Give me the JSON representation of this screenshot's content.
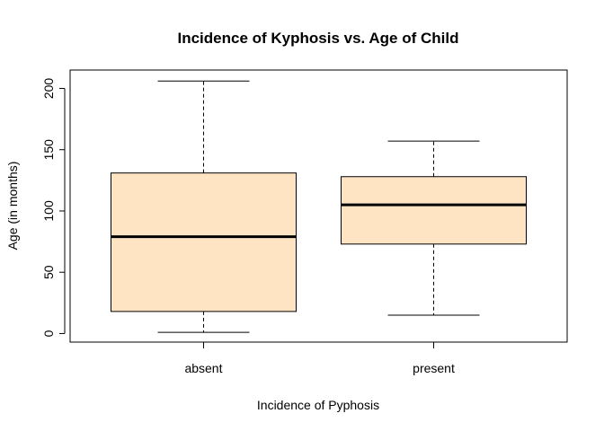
{
  "chart_data": {
    "type": "boxplot",
    "title": "Incidence of Kyphosis vs. Age of Child",
    "xlabel": "Incidence of Pyphosis",
    "ylabel": "Age (in months)",
    "ylim": [
      -7,
      215
    ],
    "yticks": [
      "0",
      "50",
      "100",
      "150",
      "200"
    ],
    "categories": [
      "absent",
      "present"
    ],
    "boxes": [
      {
        "category": "absent",
        "whisker_low": 1,
        "q1": 18,
        "median": 79,
        "q3": 131,
        "whisker_high": 206
      },
      {
        "category": "present",
        "whisker_low": 15,
        "q1": 73,
        "median": 105,
        "q3": 128,
        "whisker_high": 157
      }
    ],
    "box_fill": "#FFE4C4",
    "box_stroke": "#000000",
    "grid": false,
    "legend": "none"
  }
}
